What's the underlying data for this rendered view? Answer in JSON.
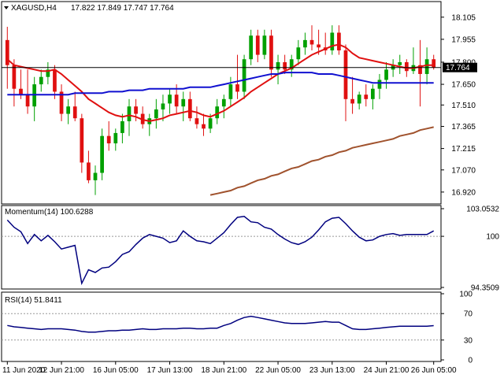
{
  "header": {
    "symbol": "XAGUSD,H4",
    "ohlc": "17.822 17.849 17.747 17.764"
  },
  "colors": {
    "bull": "#00a000",
    "bear": "#e01010",
    "sma_fast": "#e01010",
    "sma_mid": "#1010d0",
    "sma_slow": "#a0522d",
    "indicator": "#00007f",
    "price_marker": "#000000"
  },
  "chart_data": [
    {
      "type": "candlestick",
      "panel": "price",
      "ylim": [
        16.85,
        18.2
      ],
      "yticks": [
        "18.105",
        "17.955",
        "17.800",
        "17.650",
        "17.510",
        "17.365",
        "17.215",
        "17.070",
        "16.920"
      ],
      "current_price": "17.764",
      "xticks": [
        "11 Jun 2020",
        "12 Jun 21:00",
        "16 Jun 05:00",
        "17 Jun 13:00",
        "18 Jun 21:00",
        "22 Jun 05:00",
        "23 Jun 13:00",
        "24 Jun 21:00",
        "26 Jun 05:00"
      ],
      "candles": [
        [
          17.95,
          18.04,
          17.62,
          17.78
        ],
        [
          17.78,
          17.82,
          17.5,
          17.62
        ],
        [
          17.62,
          17.75,
          17.55,
          17.58
        ],
        [
          17.58,
          17.75,
          17.45,
          17.5
        ],
        [
          17.5,
          17.7,
          17.4,
          17.65
        ],
        [
          17.65,
          17.75,
          17.6,
          17.7
        ],
        [
          17.7,
          17.8,
          17.65,
          17.75
        ],
        [
          17.75,
          17.78,
          17.55,
          17.6
        ],
        [
          17.6,
          17.65,
          17.4,
          17.45
        ],
        [
          17.45,
          17.55,
          17.38,
          17.5
        ],
        [
          17.5,
          17.6,
          17.4,
          17.42
        ],
        [
          17.42,
          17.45,
          17.05,
          17.12
        ],
        [
          17.12,
          17.2,
          16.98,
          17.0
        ],
        [
          17.0,
          17.1,
          16.9,
          17.05
        ],
        [
          17.05,
          17.35,
          17.0,
          17.3
        ],
        [
          17.3,
          17.4,
          17.2,
          17.25
        ],
        [
          17.25,
          17.35,
          17.2,
          17.32
        ],
        [
          17.32,
          17.45,
          17.25,
          17.4
        ],
        [
          17.4,
          17.55,
          17.3,
          17.5
        ],
        [
          17.5,
          17.55,
          17.4,
          17.45
        ],
        [
          17.45,
          17.5,
          17.35,
          17.38
        ],
        [
          17.38,
          17.45,
          17.3,
          17.42
        ],
        [
          17.42,
          17.55,
          17.35,
          17.48
        ],
        [
          17.48,
          17.58,
          17.4,
          17.52
        ],
        [
          17.52,
          17.62,
          17.45,
          17.58
        ],
        [
          17.58,
          17.65,
          17.45,
          17.5
        ],
        [
          17.5,
          17.6,
          17.4,
          17.55
        ],
        [
          17.55,
          17.6,
          17.4,
          17.42
        ],
        [
          17.42,
          17.5,
          17.35,
          17.38
        ],
        [
          17.38,
          17.45,
          17.3,
          17.35
        ],
        [
          17.35,
          17.45,
          17.32,
          17.42
        ],
        [
          17.42,
          17.55,
          17.38,
          17.5
        ],
        [
          17.5,
          17.58,
          17.42,
          17.55
        ],
        [
          17.55,
          17.7,
          17.5,
          17.65
        ],
        [
          17.65,
          17.85,
          17.55,
          17.6
        ],
        [
          17.6,
          17.85,
          17.55,
          17.82
        ],
        [
          17.82,
          18.02,
          17.78,
          17.98
        ],
        [
          17.98,
          18.02,
          17.8,
          17.85
        ],
        [
          17.85,
          18.02,
          17.82,
          17.98
        ],
        [
          17.98,
          18.02,
          17.7,
          17.75
        ],
        [
          17.75,
          17.85,
          17.65,
          17.8
        ],
        [
          17.8,
          17.85,
          17.72,
          17.75
        ],
        [
          17.75,
          17.85,
          17.7,
          17.82
        ],
        [
          17.82,
          17.95,
          17.78,
          17.9
        ],
        [
          17.9,
          18.0,
          17.85,
          17.95
        ],
        [
          17.95,
          18.05,
          17.88,
          17.92
        ],
        [
          17.92,
          18.02,
          17.85,
          17.9
        ],
        [
          17.9,
          18.0,
          17.85,
          17.88
        ],
        [
          17.88,
          18.05,
          17.85,
          18.0
        ],
        [
          18.0,
          18.05,
          17.85,
          17.88
        ],
        [
          17.88,
          17.92,
          17.4,
          17.55
        ],
        [
          17.55,
          17.7,
          17.45,
          17.52
        ],
        [
          17.52,
          17.6,
          17.48,
          17.58
        ],
        [
          17.58,
          17.65,
          17.5,
          17.55
        ],
        [
          17.55,
          17.65,
          17.48,
          17.62
        ],
        [
          17.62,
          17.72,
          17.55,
          17.68
        ],
        [
          17.68,
          17.8,
          17.62,
          17.75
        ],
        [
          17.75,
          17.82,
          17.7,
          17.78
        ],
        [
          17.78,
          17.85,
          17.72,
          17.8
        ],
        [
          17.8,
          17.82,
          17.7,
          17.74
        ],
        [
          17.74,
          17.9,
          17.72,
          17.78
        ],
        [
          17.78,
          17.95,
          17.5,
          17.72
        ],
        [
          17.72,
          17.9,
          17.65,
          17.82
        ],
        [
          17.82,
          17.85,
          17.75,
          17.764
        ]
      ],
      "series": [
        {
          "values": [
            17.82,
            17.78,
            17.77,
            17.76,
            17.75,
            17.74,
            17.74,
            17.75,
            17.72,
            17.68,
            17.64,
            17.6,
            17.55,
            17.52,
            17.49,
            17.46,
            17.44,
            17.43,
            17.44,
            17.43,
            17.41,
            17.4,
            17.41,
            17.42,
            17.44,
            17.45,
            17.46,
            17.47,
            17.46,
            17.44,
            17.43,
            17.45,
            17.47,
            17.5,
            17.53,
            17.56,
            17.6,
            17.63,
            17.66,
            17.69,
            17.72,
            17.74,
            17.76,
            17.79,
            17.82,
            17.85,
            17.87,
            17.89,
            17.91,
            17.92,
            17.9,
            17.86,
            17.83,
            17.82,
            17.81,
            17.8,
            17.79,
            17.78,
            17.77,
            17.76,
            17.76,
            17.77,
            17.78,
            17.78
          ]
        },
        {
          "values": [
            17.58,
            17.58,
            17.58,
            17.58,
            17.58,
            17.58,
            17.58,
            17.58,
            17.58,
            17.58,
            17.59,
            17.59,
            17.59,
            17.59,
            17.59,
            17.6,
            17.6,
            17.6,
            17.61,
            17.61,
            17.61,
            17.62,
            17.62,
            17.62,
            17.62,
            17.62,
            17.62,
            17.63,
            17.63,
            17.63,
            17.63,
            17.64,
            17.65,
            17.66,
            17.67,
            17.68,
            17.69,
            17.7,
            17.71,
            17.72,
            17.72,
            17.73,
            17.73,
            17.73,
            17.73,
            17.73,
            17.72,
            17.72,
            17.72,
            17.71,
            17.7,
            17.69,
            17.68,
            17.67,
            17.66,
            17.66,
            17.66,
            17.66,
            17.66,
            17.66,
            17.66,
            17.66,
            17.66,
            17.66
          ]
        },
        {
          "values": [
            null,
            null,
            null,
            null,
            null,
            null,
            null,
            null,
            null,
            null,
            null,
            null,
            null,
            null,
            null,
            null,
            null,
            null,
            null,
            null,
            null,
            null,
            null,
            null,
            null,
            null,
            null,
            null,
            null,
            null,
            16.9,
            16.91,
            16.92,
            16.93,
            16.95,
            16.96,
            16.98,
            17.0,
            17.01,
            17.03,
            17.04,
            17.06,
            17.08,
            17.09,
            17.11,
            17.13,
            17.14,
            17.16,
            17.17,
            17.19,
            17.2,
            17.22,
            17.23,
            17.24,
            17.25,
            17.26,
            17.27,
            17.28,
            17.3,
            17.31,
            17.32,
            17.34,
            17.35,
            17.36
          ]
        }
      ]
    },
    {
      "type": "line",
      "panel": "momentum",
      "title": "Momentum(14) 100.6288",
      "ylim": [
        94.3509,
        103.0532
      ],
      "yticks": [
        "103.0532",
        "100",
        "94.3509"
      ],
      "values": [
        101.8,
        101.0,
        100.5,
        99.2,
        100.2,
        99.5,
        100.1,
        99.4,
        98.6,
        98.8,
        99.0,
        94.8,
        96.3,
        96.0,
        96.5,
        96.6,
        97.2,
        98.0,
        98.3,
        99.1,
        99.8,
        100.2,
        100.0,
        99.8,
        99.3,
        99.5,
        100.6,
        100.0,
        99.5,
        99.4,
        99.2,
        99.8,
        100.4,
        101.3,
        102.1,
        102.2,
        101.6,
        101.5,
        101.0,
        100.8,
        100.2,
        99.7,
        99.3,
        99.1,
        99.4,
        99.9,
        100.7,
        101.6,
        102.0,
        102.1,
        101.4,
        100.6,
        99.9,
        99.5,
        99.6,
        100.0,
        100.2,
        100.3,
        100.1,
        100.2,
        100.2,
        100.2,
        100.2,
        100.6
      ]
    },
    {
      "type": "line",
      "panel": "rsi",
      "title": "RSI(14) 51.8411",
      "ylim": [
        0,
        100
      ],
      "yticks": [
        "100",
        "70",
        "30",
        "0"
      ],
      "levels": [
        70,
        30
      ],
      "values": [
        52,
        50,
        49,
        48,
        47,
        46,
        47,
        47,
        47,
        46,
        45,
        43,
        42,
        42,
        43,
        44,
        44,
        45,
        45,
        46,
        47,
        46,
        46,
        47,
        47,
        47,
        48,
        48,
        47,
        47,
        48,
        48,
        52,
        55,
        60,
        64,
        66,
        64,
        62,
        60,
        58,
        56,
        55,
        55,
        55,
        56,
        57,
        58,
        57,
        57,
        52,
        47,
        46,
        46,
        47,
        48,
        49,
        50,
        51,
        51,
        51,
        51,
        51,
        51.8411
      ]
    }
  ]
}
